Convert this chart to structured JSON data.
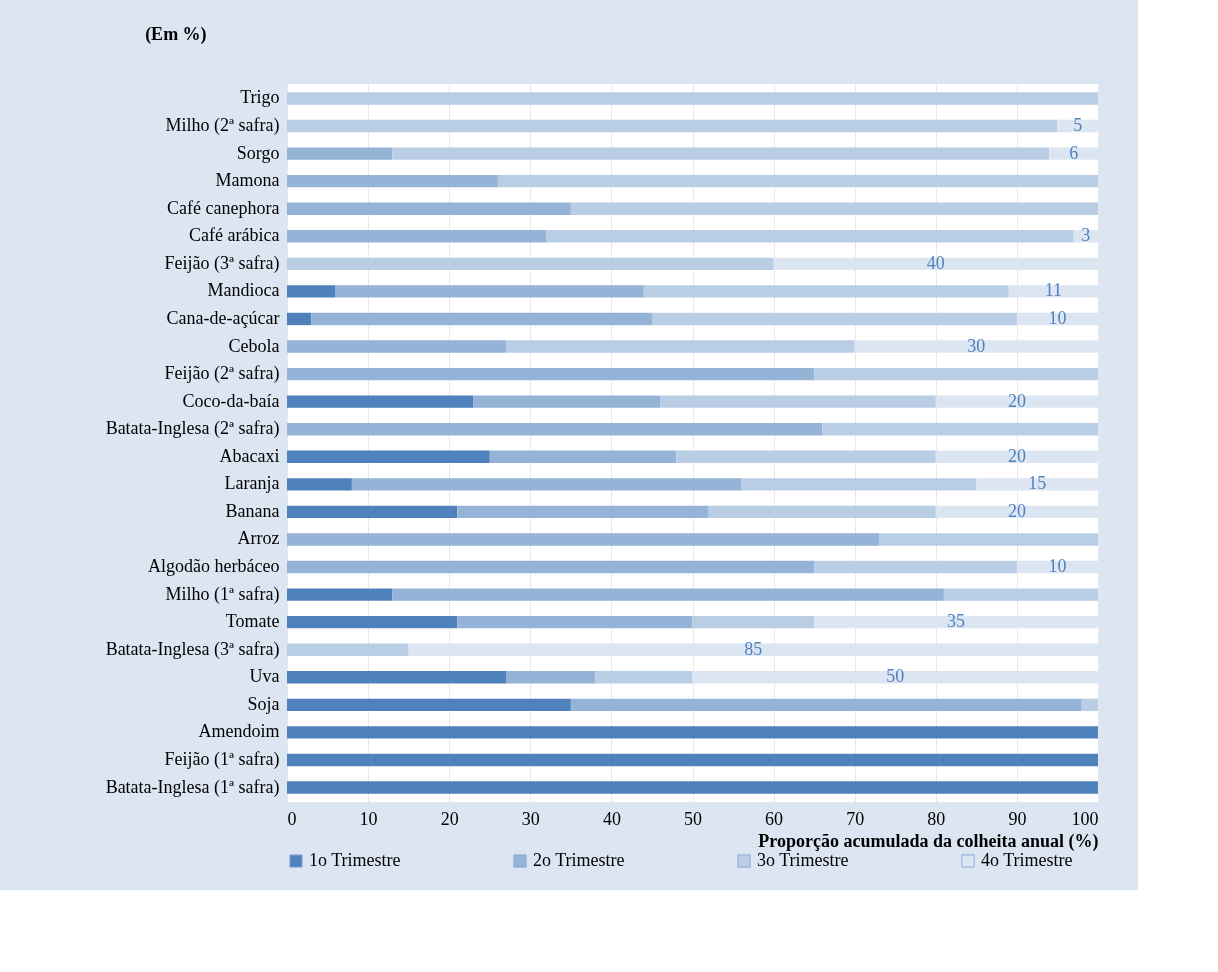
{
  "chart_data": {
    "type": "bar",
    "orientation": "horizontal",
    "stacked": true,
    "title": "(Em %)",
    "xlabel": "Proporção acumulada da colheita anual (%)",
    "categories": [
      "Trigo",
      "Milho (2ª safra)",
      "Sorgo",
      "Mamona",
      "Café canephora",
      "Café arábica",
      "Feijão (3ª safra)",
      "Mandioca",
      "Cana-de-açúcar",
      "Cebola",
      "Feijão (2ª safra)",
      "Coco-da-baía",
      "Batata-Inglesa (2ª safra)",
      "Abacaxi",
      "Laranja",
      "Banana",
      "Arroz",
      "Algodão herbáceo",
      "Milho (1ª safra)",
      "Tomate",
      "Batata-Inglesa (3ª safra)",
      "Uva",
      "Soja",
      "Amendoim",
      "Feijão (1ª safra)",
      "Batata-Inglesa (1ª safra)"
    ],
    "series": [
      {
        "name": "1o Trimestre",
        "color": "#4f81bd",
        "values": [
          null,
          null,
          null,
          null,
          null,
          null,
          null,
          6,
          3,
          null,
          null,
          23,
          null,
          25,
          8,
          21,
          null,
          null,
          13,
          21,
          null,
          27,
          35,
          100,
          100,
          100
        ]
      },
      {
        "name": "2o Trimestre",
        "color": "#95b3d7",
        "values": [
          null,
          null,
          13,
          26,
          35,
          32,
          null,
          38,
          42,
          27,
          65,
          23,
          66,
          23,
          48,
          31,
          73,
          65,
          68,
          29,
          null,
          11,
          63,
          null,
          null,
          null
        ]
      },
      {
        "name": "3o Trimestre",
        "color": "#b9cde5",
        "values": [
          100,
          95,
          81,
          74,
          65,
          65,
          60,
          45,
          45,
          43,
          35,
          34,
          34,
          32,
          29,
          28,
          27,
          25,
          19,
          15,
          15,
          12,
          2,
          null,
          null,
          null
        ]
      },
      {
        "name": "4o Trimestre",
        "color": "#dce6f2",
        "values": [
          null,
          5,
          6,
          null,
          null,
          3,
          40,
          11,
          10,
          30,
          null,
          20,
          null,
          20,
          15,
          20,
          null,
          10,
          null,
          35,
          85,
          50,
          null,
          null,
          null,
          null
        ],
        "value_labels": [
          null,
          "5",
          "6",
          null,
          null,
          "3",
          "40",
          "11",
          "10",
          "30",
          null,
          "20",
          null,
          "20",
          "15",
          "20",
          null,
          "10",
          null,
          "35",
          "85",
          "50",
          null,
          null,
          null,
          null
        ]
      }
    ],
    "xlim": [
      0,
      100
    ],
    "xticks": [
      0,
      10,
      20,
      30,
      40,
      50,
      60,
      70,
      80,
      90,
      100
    ],
    "grid": "x",
    "legend": "bottom"
  }
}
